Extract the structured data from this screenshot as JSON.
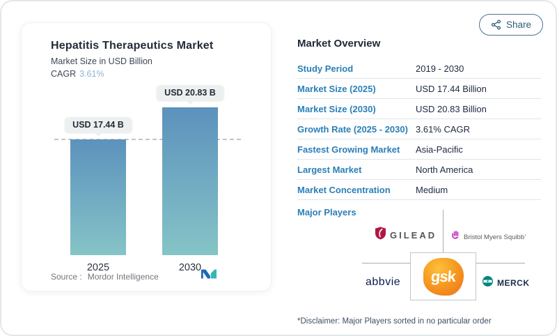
{
  "share": {
    "label": "Share"
  },
  "chart_card": {
    "title": "Hepatitis Therapeutics Market",
    "subtitle": "Market Size in USD Billion",
    "cagr_label": "CAGR",
    "cagr_value": "3.61%",
    "source_label": "Source :",
    "source_value": "Mordor Intelligence"
  },
  "chart_data": {
    "type": "bar",
    "categories": [
      "2025",
      "2030"
    ],
    "values": [
      17.44,
      20.83
    ],
    "data_labels": [
      "USD 17.44 B",
      "USD 20.83 B"
    ],
    "title": "Hepatitis Therapeutics Market",
    "subtitle": "Market Size in USD Billion",
    "unit": "USD Billion",
    "cagr": "3.61%",
    "reference_line_value": 17.44,
    "grid": false,
    "bar_gradient_top": "#5c92bc",
    "bar_gradient_bottom": "#85c4c6"
  },
  "overview": {
    "title": "Market Overview",
    "rows": [
      {
        "label": "Study Period",
        "value": "2019 - 2030"
      },
      {
        "label": "Market Size (2025)",
        "value": "USD 17.44 Billion"
      },
      {
        "label": "Market Size (2030)",
        "value": "USD 20.83 Billion"
      },
      {
        "label": "Growth Rate (2025 - 2030)",
        "value": "3.61% CAGR"
      },
      {
        "label": "Fastest Growing Market",
        "value": "Asia-Pacific"
      },
      {
        "label": "Largest Market",
        "value": "North America"
      },
      {
        "label": "Market Concentration",
        "value": "Medium"
      }
    ],
    "major_players_label": "Major Players",
    "players": [
      {
        "name": "GILEAD",
        "brand_color": "#b01842"
      },
      {
        "name": "Bristol Myers Squibb’",
        "brand_color": "#be2bbf"
      },
      {
        "name": "abbvie",
        "brand_color": "#0a1e50"
      },
      {
        "name": "gsk",
        "brand_color": "#f18a21"
      },
      {
        "name": "MERCK",
        "brand_color": "#00857c"
      }
    ],
    "disclaimer": "*Disclaimer: Major Players sorted in no particular order"
  },
  "colors": {
    "label_blue": "#2a7fb8",
    "text_navy": "#1c2940",
    "cagr_light_blue": "#8fb4d3",
    "mordor_blue": "#1e69b3",
    "mordor_teal": "#35b6b4"
  }
}
